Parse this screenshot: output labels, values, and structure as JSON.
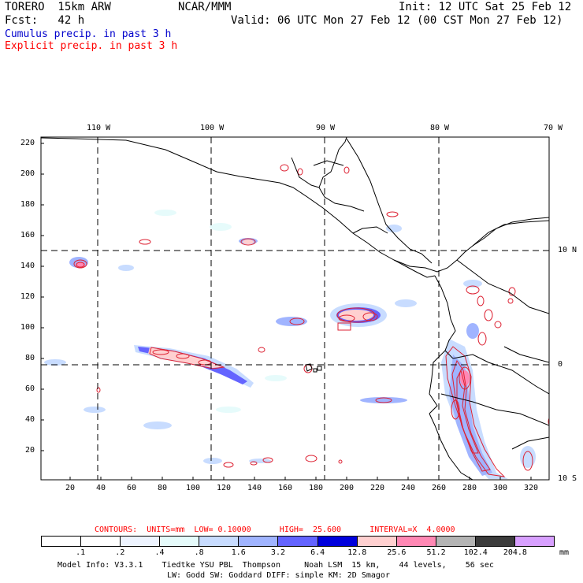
{
  "header": {
    "model": "TORERO  15km ARW",
    "org": "NCAR/MMM",
    "init": "Init: 12 UTC Sat 25 Feb 12",
    "fcst": "Fcst:   42 h",
    "valid": "Valid: 06 UTC Mon 27 Feb 12 (00 CST Mon 27 Feb 12)",
    "cumulus": "Cumulus precip. in past 3 h",
    "explicit": "Explicit precip. in past 3 h"
  },
  "colors": {
    "cumulus": "#0000cc",
    "explicit": "#ff0000",
    "contour": "#dd2233",
    "coast": "#000000"
  },
  "axes": {
    "top_lon": [
      "110 W",
      "100 W",
      "90 W",
      "80 W",
      "70 W"
    ],
    "right_lat": [
      "10 N",
      "0",
      "10 S"
    ],
    "left_y": [
      "220",
      "200",
      "180",
      "160",
      "140",
      "120",
      "100",
      "80",
      "60",
      "40",
      "20"
    ],
    "bottom_x": [
      "20",
      "40",
      "60",
      "80",
      "100",
      "120",
      "140",
      "160",
      "180",
      "200",
      "220",
      "240",
      "260",
      "280",
      "300",
      "320"
    ]
  },
  "contour_line": "CONTOURS:  UNITS=mm  LOW= 0.10000      HIGH=  25.600      INTERVAL=X  4.0000",
  "colorbar": {
    "labels": [
      ".1",
      ".2",
      ".4",
      ".8",
      "1.6",
      "3.2",
      "6.4",
      "12.8",
      "25.6",
      "51.2",
      "102.4",
      "204.8"
    ],
    "unit": "mm",
    "colors": [
      "#ffffff",
      "#ffffff",
      "#eef4ff",
      "#e6fbfb",
      "#c8dcff",
      "#a0b4ff",
      "#6464ff",
      "#0000dc",
      "#ffd0d0",
      "#ff88b4",
      "#b4b4b4",
      "#3c3c3c",
      "#d8a0ff"
    ]
  },
  "footer": {
    "line1": "Model Info: V3.3.1    Tiedtke YSU PBL  Thompson     Noah LSM  15 km,    44 levels,    56 sec",
    "line2": "LW: Godd SW: Goddard DIFF: simple KM: 2D Smagor"
  }
}
